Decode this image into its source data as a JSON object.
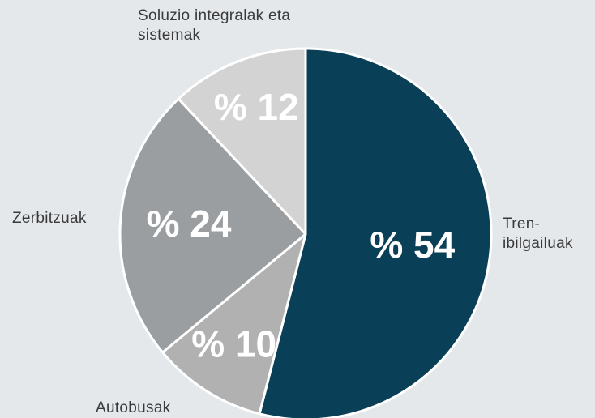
{
  "chart_data": {
    "type": "pie",
    "categories": [
      "Tren-ibilgailuak",
      "Autobusak",
      "Zerbitzuak",
      "Soluzio integralak eta sistemak"
    ],
    "values": [
      54,
      10,
      24,
      12
    ],
    "value_labels": [
      "% 54",
      "% 10",
      "% 24",
      "% 12"
    ],
    "colors": [
      "#0a3f58",
      "#b1b1b1",
      "#9b9ea1",
      "#d4d3d3"
    ]
  }
}
